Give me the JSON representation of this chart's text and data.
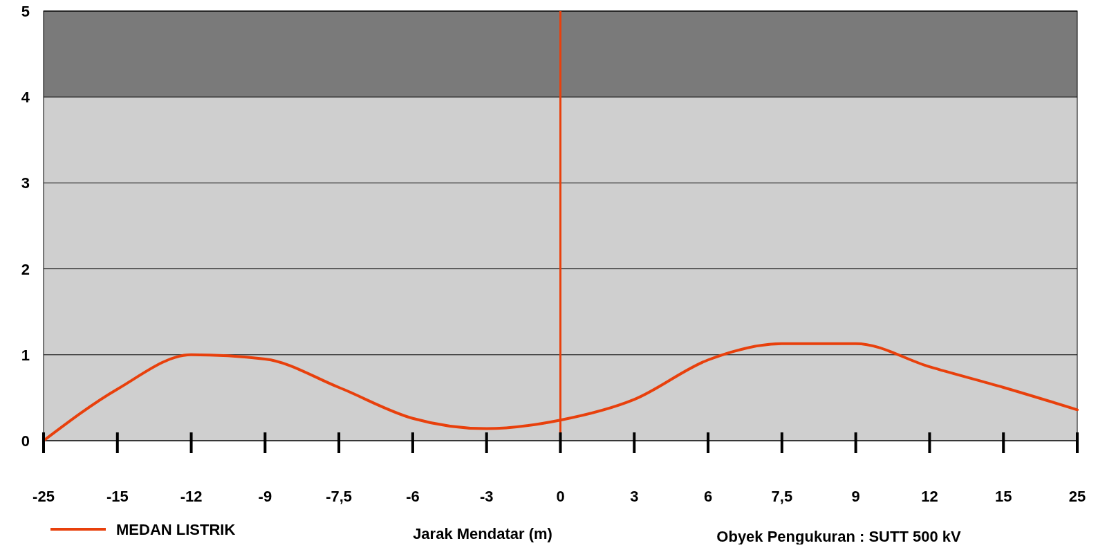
{
  "chart_data": {
    "type": "line",
    "xlabel": "Jarak Mendatar (m)",
    "categories": [
      "-25",
      "-15",
      "-12",
      "-9",
      "-7,5",
      "-6",
      "-3",
      "0",
      "3",
      "6",
      "7,5",
      "9",
      "12",
      "15",
      "25"
    ],
    "series": [
      {
        "name": "MEDAN LISTRIK",
        "color": "#e8400c",
        "values": [
          0,
          0.6,
          1.0,
          0.95,
          0.62,
          0.26,
          0.14,
          0.24,
          0.48,
          0.94,
          1.13,
          1.13,
          0.86,
          0.62,
          0.36
        ]
      }
    ],
    "ylim": [
      0,
      5
    ],
    "yticks": [
      0,
      1,
      2,
      3,
      4,
      5
    ],
    "grid": "y",
    "legend": "bottom left",
    "bands": [
      {
        "axis": "y",
        "from": 0,
        "to": 4,
        "color": "#cfcfcf"
      },
      {
        "axis": "y",
        "from": 4,
        "to": 5,
        "color": "#7a7a7a"
      }
    ],
    "ref_lines": [
      {
        "axis": "x",
        "value": "0",
        "color": "#e8400c"
      }
    ],
    "annotations": [
      "Obyek Pengukuran : SUTT 500 kV"
    ]
  }
}
